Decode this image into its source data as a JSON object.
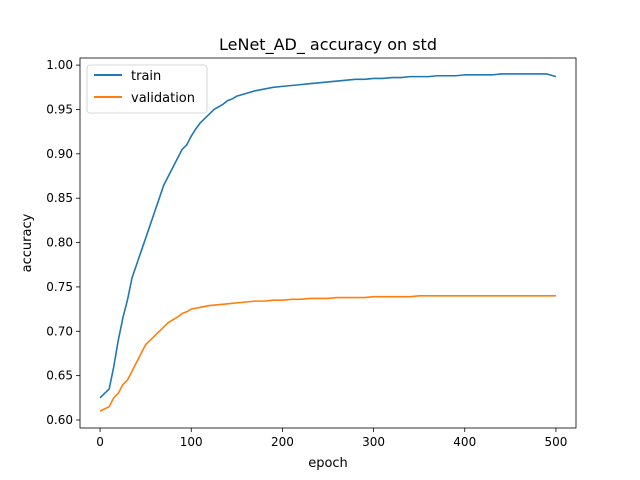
{
  "chart_data": {
    "type": "line",
    "title": "LeNet_AD_ accuracy on std",
    "xlabel": "epoch",
    "ylabel": "accuracy",
    "xlim": [
      -22,
      522
    ],
    "ylim": [
      0.591,
      1.008
    ],
    "grid": false,
    "legend_placement": "top-left",
    "x_ticks": [
      0,
      100,
      200,
      300,
      400,
      500
    ],
    "x_tick_labels": [
      "0",
      "100",
      "200",
      "300",
      "400",
      "500"
    ],
    "y_ticks": [
      0.6,
      0.65,
      0.7,
      0.75,
      0.8,
      0.85,
      0.9,
      0.95,
      1.0
    ],
    "y_tick_labels": [
      "0.60",
      "0.65",
      "0.70",
      "0.75",
      "0.80",
      "0.85",
      "0.90",
      "0.95",
      "1.00"
    ],
    "series": [
      {
        "name": "train",
        "color": "#1f77b4",
        "x": [
          0,
          10,
          15,
          20,
          25,
          30,
          35,
          40,
          45,
          50,
          55,
          60,
          65,
          70,
          75,
          80,
          85,
          90,
          95,
          100,
          105,
          110,
          115,
          120,
          125,
          130,
          135,
          140,
          145,
          150,
          160,
          170,
          180,
          190,
          200,
          210,
          220,
          230,
          240,
          250,
          260,
          270,
          280,
          290,
          300,
          310,
          320,
          330,
          340,
          350,
          360,
          370,
          380,
          390,
          400,
          410,
          420,
          430,
          440,
          450,
          460,
          470,
          480,
          490,
          500
        ],
        "values": [
          0.625,
          0.635,
          0.66,
          0.69,
          0.715,
          0.735,
          0.76,
          0.775,
          0.79,
          0.805,
          0.82,
          0.835,
          0.85,
          0.865,
          0.875,
          0.885,
          0.895,
          0.905,
          0.91,
          0.92,
          0.928,
          0.935,
          0.94,
          0.945,
          0.95,
          0.953,
          0.956,
          0.96,
          0.962,
          0.965,
          0.968,
          0.971,
          0.973,
          0.975,
          0.976,
          0.977,
          0.978,
          0.979,
          0.98,
          0.981,
          0.982,
          0.983,
          0.984,
          0.984,
          0.985,
          0.985,
          0.986,
          0.986,
          0.987,
          0.987,
          0.987,
          0.988,
          0.988,
          0.988,
          0.989,
          0.989,
          0.989,
          0.989,
          0.99,
          0.99,
          0.99,
          0.99,
          0.99,
          0.99,
          0.987
        ]
      },
      {
        "name": "validation",
        "color": "#ff7f0e",
        "x": [
          0,
          10,
          15,
          20,
          25,
          30,
          35,
          40,
          45,
          50,
          55,
          60,
          65,
          70,
          75,
          80,
          85,
          90,
          95,
          100,
          110,
          120,
          130,
          140,
          150,
          160,
          170,
          180,
          190,
          200,
          210,
          220,
          230,
          240,
          250,
          260,
          270,
          280,
          290,
          300,
          310,
          320,
          330,
          340,
          350,
          360,
          370,
          380,
          390,
          400,
          410,
          420,
          430,
          440,
          450,
          460,
          470,
          480,
          490,
          500
        ],
        "values": [
          0.61,
          0.615,
          0.625,
          0.63,
          0.64,
          0.645,
          0.655,
          0.665,
          0.675,
          0.685,
          0.69,
          0.695,
          0.7,
          0.705,
          0.71,
          0.713,
          0.716,
          0.72,
          0.722,
          0.725,
          0.727,
          0.729,
          0.73,
          0.731,
          0.732,
          0.733,
          0.734,
          0.734,
          0.735,
          0.735,
          0.736,
          0.736,
          0.737,
          0.737,
          0.737,
          0.738,
          0.738,
          0.738,
          0.738,
          0.739,
          0.739,
          0.739,
          0.739,
          0.739,
          0.74,
          0.74,
          0.74,
          0.74,
          0.74,
          0.74,
          0.74,
          0.74,
          0.74,
          0.74,
          0.74,
          0.74,
          0.74,
          0.74,
          0.74,
          0.74
        ]
      }
    ]
  }
}
